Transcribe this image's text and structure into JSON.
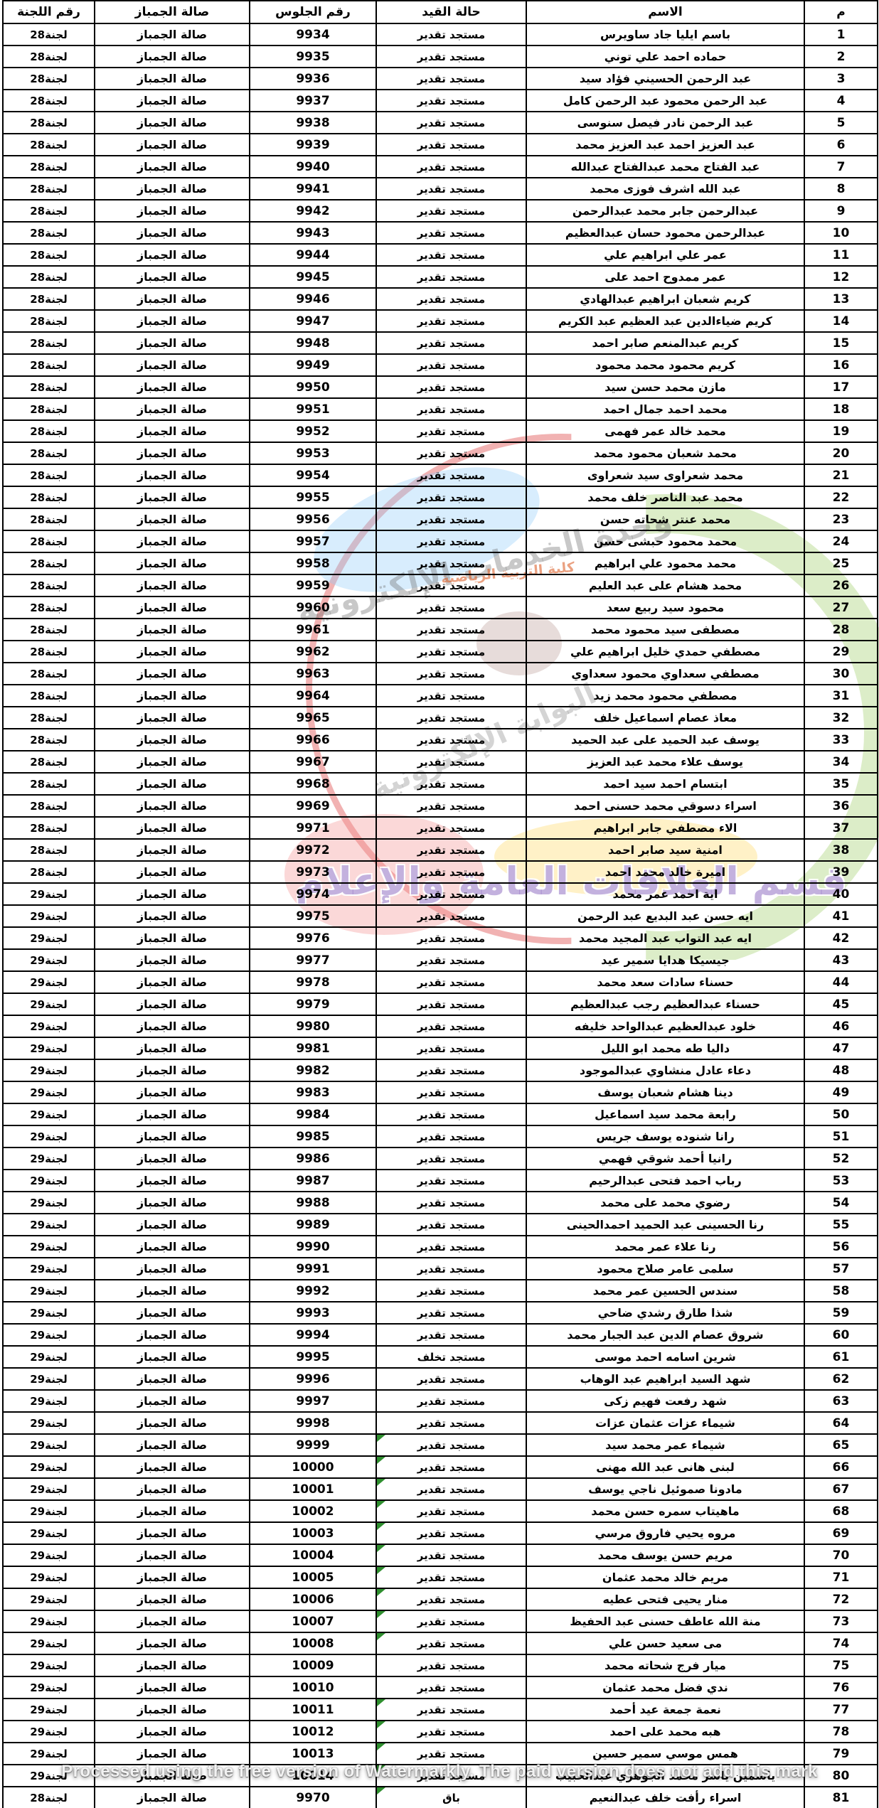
{
  "table": {
    "headers": [
      "م",
      "الاسم",
      "حالة القيد",
      "رقم الجلوس",
      "صالة الجمباز",
      "رقم اللجنة"
    ],
    "rows": [
      {
        "n": "1",
        "name": "باسم ايليا جاد ساويرس",
        "status": "مستجد تقدير",
        "seat": "9934",
        "hall": "صالة الجمباز",
        "committee": "لجنة28",
        "flag": false
      },
      {
        "n": "2",
        "name": "حماده احمد علي توني",
        "status": "مستجد تقدير",
        "seat": "9935",
        "hall": "صالة الجمباز",
        "committee": "لجنة28",
        "flag": false
      },
      {
        "n": "3",
        "name": "عبد الرحمن الحسيني فؤاد سيد",
        "status": "مستجد تقدير",
        "seat": "9936",
        "hall": "صالة الجمباز",
        "committee": "لجنة28",
        "flag": false
      },
      {
        "n": "4",
        "name": "عبد الرحمن محمود عبد الرحمن كامل",
        "status": "مستجد تقدير",
        "seat": "9937",
        "hall": "صالة الجمباز",
        "committee": "لجنة28",
        "flag": false
      },
      {
        "n": "5",
        "name": "عبد الرحمن نادر فيصل سنوسى",
        "status": "مستجد تقدير",
        "seat": "9938",
        "hall": "صالة الجمباز",
        "committee": "لجنة28",
        "flag": false
      },
      {
        "n": "6",
        "name": "عبد العزيز احمد عبد العزيز محمد",
        "status": "مستجد تقدير",
        "seat": "9939",
        "hall": "صالة الجمباز",
        "committee": "لجنة28",
        "flag": false
      },
      {
        "n": "7",
        "name": "عبد الفتاح محمد عبدالفتاح عبدالله",
        "status": "مستجد تقدير",
        "seat": "9940",
        "hall": "صالة الجمباز",
        "committee": "لجنة28",
        "flag": false
      },
      {
        "n": "8",
        "name": "عبد الله اشرف فوزى محمد",
        "status": "مستجد تقدير",
        "seat": "9941",
        "hall": "صالة الجمباز",
        "committee": "لجنة28",
        "flag": false
      },
      {
        "n": "9",
        "name": "عبدالرحمن جابر محمد عبدالرحمن",
        "status": "مستجد تقدير",
        "seat": "9942",
        "hall": "صالة الجمباز",
        "committee": "لجنة28",
        "flag": false
      },
      {
        "n": "10",
        "name": "عبدالرحمن محمود حسان عبدالعظيم",
        "status": "مستجد تقدير",
        "seat": "9943",
        "hall": "صالة الجمباز",
        "committee": "لجنة28",
        "flag": false
      },
      {
        "n": "11",
        "name": "عمر علي ابراهيم علي",
        "status": "مستجد تقدير",
        "seat": "9944",
        "hall": "صالة الجمباز",
        "committee": "لجنة28",
        "flag": false
      },
      {
        "n": "12",
        "name": "عمر ممدوح احمد على",
        "status": "مستجد تقدير",
        "seat": "9945",
        "hall": "صالة الجمباز",
        "committee": "لجنة28",
        "flag": false
      },
      {
        "n": "13",
        "name": "كريم شعبان ابراهيم عبدالهادي",
        "status": "مستجد تقدير",
        "seat": "9946",
        "hall": "صالة الجمباز",
        "committee": "لجنة28",
        "flag": false
      },
      {
        "n": "14",
        "name": "كريم ضياءالدين عبد العظيم عبد الكريم",
        "status": "مستجد تقدير",
        "seat": "9947",
        "hall": "صالة الجمباز",
        "committee": "لجنة28",
        "flag": false
      },
      {
        "n": "15",
        "name": "كريم عبدالمنعم صابر احمد",
        "status": "مستجد تقدير",
        "seat": "9948",
        "hall": "صالة الجمباز",
        "committee": "لجنة28",
        "flag": false
      },
      {
        "n": "16",
        "name": "كريم محمود محمد محمود",
        "status": "مستجد تقدير",
        "seat": "9949",
        "hall": "صالة الجمباز",
        "committee": "لجنة28",
        "flag": false
      },
      {
        "n": "17",
        "name": "مازن محمد حسن سيد",
        "status": "مستجد تقدير",
        "seat": "9950",
        "hall": "صالة الجمباز",
        "committee": "لجنة28",
        "flag": false
      },
      {
        "n": "18",
        "name": "محمد احمد جمال احمد",
        "status": "مستجد تقدير",
        "seat": "9951",
        "hall": "صالة الجمباز",
        "committee": "لجنة28",
        "flag": false
      },
      {
        "n": "19",
        "name": "محمد خالد عمر فهمى",
        "status": "مستجد تقدير",
        "seat": "9952",
        "hall": "صالة الجمباز",
        "committee": "لجنة28",
        "flag": false
      },
      {
        "n": "20",
        "name": "محمد شعبان محمود محمد",
        "status": "مستجد تقدير",
        "seat": "9953",
        "hall": "صالة الجمباز",
        "committee": "لجنة28",
        "flag": false
      },
      {
        "n": "21",
        "name": "محمد شعراوى سيد شعراوى",
        "status": "مستجد تقدير",
        "seat": "9954",
        "hall": "صالة الجمباز",
        "committee": "لجنة28",
        "flag": false
      },
      {
        "n": "22",
        "name": "محمد عبد الناصر خلف محمد",
        "status": "مستجد تقدير",
        "seat": "9955",
        "hall": "صالة الجمباز",
        "committee": "لجنة28",
        "flag": false
      },
      {
        "n": "23",
        "name": "محمد عنتر شحاته حسن",
        "status": "مستجد تقدير",
        "seat": "9956",
        "hall": "صالة الجمباز",
        "committee": "لجنة28",
        "flag": false
      },
      {
        "n": "24",
        "name": "محمد محمود حبشى حسن",
        "status": "مستجد تقدير",
        "seat": "9957",
        "hall": "صالة الجمباز",
        "committee": "لجنة28",
        "flag": false
      },
      {
        "n": "25",
        "name": "محمد محمود علي ابراهيم",
        "status": "مستجد تقدير",
        "seat": "9958",
        "hall": "صالة الجمباز",
        "committee": "لجنة28",
        "flag": false
      },
      {
        "n": "26",
        "name": "محمد هشام على عبد العليم",
        "status": "مستجد تقدير",
        "seat": "9959",
        "hall": "صالة الجمباز",
        "committee": "لجنة28",
        "flag": false
      },
      {
        "n": "27",
        "name": "محمود سيد ربيع سعد",
        "status": "مستجد تقدير",
        "seat": "9960",
        "hall": "صالة الجمباز",
        "committee": "لجنة28",
        "flag": false
      },
      {
        "n": "28",
        "name": "مصطفى سيد محمود محمد",
        "status": "مستجد تقدير",
        "seat": "9961",
        "hall": "صالة الجمباز",
        "committee": "لجنة28",
        "flag": false
      },
      {
        "n": "29",
        "name": "مصطفي حمدي خليل ابراهيم علي",
        "status": "مستجد تقدير",
        "seat": "9962",
        "hall": "صالة الجمباز",
        "committee": "لجنة28",
        "flag": false
      },
      {
        "n": "30",
        "name": "مصطفي سعداوي محمود سعداوي",
        "status": "مستجد تقدير",
        "seat": "9963",
        "hall": "صالة الجمباز",
        "committee": "لجنة28",
        "flag": false
      },
      {
        "n": "31",
        "name": "مصطفي محمود محمد زيد",
        "status": "مستجد تقدير",
        "seat": "9964",
        "hall": "صالة الجمباز",
        "committee": "لجنة28",
        "flag": false
      },
      {
        "n": "32",
        "name": "معاذ عصام اسماعيل خلف",
        "status": "مستجد تقدير",
        "seat": "9965",
        "hall": "صالة الجمباز",
        "committee": "لجنة28",
        "flag": false
      },
      {
        "n": "33",
        "name": "يوسف عبد الحميد على عبد الحميد",
        "status": "مستجد تقدير",
        "seat": "9966",
        "hall": "صالة الجمباز",
        "committee": "لجنة28",
        "flag": false
      },
      {
        "n": "34",
        "name": "يوسف علاء محمد عبد العزيز",
        "status": "مستجد تقدير",
        "seat": "9967",
        "hall": "صالة الجمباز",
        "committee": "لجنة28",
        "flag": false
      },
      {
        "n": "35",
        "name": "ابتسام احمد سيد احمد",
        "status": "مستجد تقدير",
        "seat": "9968",
        "hall": "صالة الجمباز",
        "committee": "لجنة28",
        "flag": false
      },
      {
        "n": "36",
        "name": "اسراء دسوقي محمد حسنى احمد",
        "status": "مستجد تقدير",
        "seat": "9969",
        "hall": "صالة الجمباز",
        "committee": "لجنة28",
        "flag": false
      },
      {
        "n": "37",
        "name": "الاء مصطفي جابر ابراهيم",
        "status": "مستجد تقدير",
        "seat": "9971",
        "hall": "صالة الجمباز",
        "committee": "لجنة28",
        "flag": false
      },
      {
        "n": "38",
        "name": "امنية سيد صابر احمد",
        "status": "مستجد تقدير",
        "seat": "9972",
        "hall": "صالة الجمباز",
        "committee": "لجنة28",
        "flag": false
      },
      {
        "n": "39",
        "name": "اميرة خالد محمد احمد",
        "status": "مستجد تقدير",
        "seat": "9973",
        "hall": "صالة الجمباز",
        "committee": "لجنة28",
        "flag": false
      },
      {
        "n": "40",
        "name": "اية احمد عمر محمد",
        "status": "مستجد تقدير",
        "seat": "9974",
        "hall": "صالة الجمباز",
        "committee": "لجنة29",
        "flag": false
      },
      {
        "n": "41",
        "name": "ايه حسن عبد البديع عبد الرحمن",
        "status": "مستجد تقدير",
        "seat": "9975",
        "hall": "صالة الجمباز",
        "committee": "لجنة29",
        "flag": false
      },
      {
        "n": "42",
        "name": "ايه عبد التواب عبد المجيد محمد",
        "status": "مستجد تقدير",
        "seat": "9976",
        "hall": "صالة الجمباز",
        "committee": "لجنة29",
        "flag": false
      },
      {
        "n": "43",
        "name": "جيسيكا هدايا سمير عيد",
        "status": "مستجد تقدير",
        "seat": "9977",
        "hall": "صالة الجمباز",
        "committee": "لجنة29",
        "flag": false
      },
      {
        "n": "44",
        "name": "حسناء سادات سعد محمد",
        "status": "مستجد تقدير",
        "seat": "9978",
        "hall": "صالة الجمباز",
        "committee": "لجنة29",
        "flag": false
      },
      {
        "n": "45",
        "name": "حسناء عبدالعظيم رجب عبدالعظيم",
        "status": "مستجد تقدير",
        "seat": "9979",
        "hall": "صالة الجمباز",
        "committee": "لجنة29",
        "flag": false
      },
      {
        "n": "46",
        "name": "خلود عبدالعظيم عبدالواحد خليفه",
        "status": "مستجد تقدير",
        "seat": "9980",
        "hall": "صالة الجمباز",
        "committee": "لجنة29",
        "flag": false
      },
      {
        "n": "47",
        "name": "داليا طه محمد ابو الليل",
        "status": "مستجد تقدير",
        "seat": "9981",
        "hall": "صالة الجمباز",
        "committee": "لجنة29",
        "flag": false
      },
      {
        "n": "48",
        "name": "دعاء عادل منشاوي عبدالموجود",
        "status": "مستجد تقدير",
        "seat": "9982",
        "hall": "صالة الجمباز",
        "committee": "لجنة29",
        "flag": false
      },
      {
        "n": "49",
        "name": "دينا هشام شعبان يوسف",
        "status": "مستجد تقدير",
        "seat": "9983",
        "hall": "صالة الجمباز",
        "committee": "لجنة29",
        "flag": false
      },
      {
        "n": "50",
        "name": "رابعة محمد سيد اسماعيل",
        "status": "مستجد تقدير",
        "seat": "9984",
        "hall": "صالة الجمباز",
        "committee": "لجنة29",
        "flag": false
      },
      {
        "n": "51",
        "name": "رانا شنوده يوسف جريس",
        "status": "مستجد تقدير",
        "seat": "9985",
        "hall": "صالة الجمباز",
        "committee": "لجنة29",
        "flag": false
      },
      {
        "n": "52",
        "name": "رانيا أحمد شوقي فهمي",
        "status": "مستجد تقدير",
        "seat": "9986",
        "hall": "صالة الجمباز",
        "committee": "لجنة29",
        "flag": false
      },
      {
        "n": "53",
        "name": "رباب احمد فتحى عبدالرحيم",
        "status": "مستجد تقدير",
        "seat": "9987",
        "hall": "صالة الجمباز",
        "committee": "لجنة29",
        "flag": false
      },
      {
        "n": "54",
        "name": "رضوي محمد على محمد",
        "status": "مستجد تقدير",
        "seat": "9988",
        "hall": "صالة الجمباز",
        "committee": "لجنة29",
        "flag": false
      },
      {
        "n": "55",
        "name": "رنا الحسينى عبد الحميد احمدالحينى",
        "status": "مستجد تقدير",
        "seat": "9989",
        "hall": "صالة الجمباز",
        "committee": "لجنة29",
        "flag": false
      },
      {
        "n": "56",
        "name": "رنا علاء عمر محمد",
        "status": "مستجد تقدير",
        "seat": "9990",
        "hall": "صالة الجمباز",
        "committee": "لجنة29",
        "flag": false
      },
      {
        "n": "57",
        "name": "سلمى عامر صلاح محمود",
        "status": "مستجد تقدير",
        "seat": "9991",
        "hall": "صالة الجمباز",
        "committee": "لجنة29",
        "flag": false
      },
      {
        "n": "58",
        "name": "سندس الحسين عمر محمد",
        "status": "مستجد تقدير",
        "seat": "9992",
        "hall": "صالة الجمباز",
        "committee": "لجنة29",
        "flag": false
      },
      {
        "n": "59",
        "name": "شذا طارق رشدي ضاحي",
        "status": "مستجد تقدير",
        "seat": "9993",
        "hall": "صالة الجمباز",
        "committee": "لجنة29",
        "flag": false
      },
      {
        "n": "60",
        "name": "شروق عصام الدين عبد الجبار محمد",
        "status": "مستجد تقدير",
        "seat": "9994",
        "hall": "صالة الجمباز",
        "committee": "لجنة29",
        "flag": false
      },
      {
        "n": "61",
        "name": "شرين اسامه احمد موسى",
        "status": "مستجد تخلف",
        "seat": "9995",
        "hall": "صالة الجمباز",
        "committee": "لجنة29",
        "flag": false
      },
      {
        "n": "62",
        "name": "شهد السيد ابراهيم عبد الوهاب",
        "status": "مستجد تقدير",
        "seat": "9996",
        "hall": "صالة الجمباز",
        "committee": "لجنة29",
        "flag": false
      },
      {
        "n": "63",
        "name": "شهد رفعت فهيم زكى",
        "status": "مستجد تقدير",
        "seat": "9997",
        "hall": "صالة الجمباز",
        "committee": "لجنة29",
        "flag": false
      },
      {
        "n": "64",
        "name": "شيماء عزات عثمان عزات",
        "status": "مستجد تقدير",
        "seat": "9998",
        "hall": "صالة الجمباز",
        "committee": "لجنة29",
        "flag": false
      },
      {
        "n": "65",
        "name": "شيماء عمر محمد سيد",
        "status": "مستجد تقدير",
        "seat": "9999",
        "hall": "صالة الجمباز",
        "committee": "لجنة29",
        "flag": true
      },
      {
        "n": "66",
        "name": "لبنى هانى عبد الله مهنى",
        "status": "مستجد تقدير",
        "seat": "10000",
        "hall": "صالة الجمباز",
        "committee": "لجنة29",
        "flag": true
      },
      {
        "n": "67",
        "name": "مادونا صموئيل ناجي يوسف",
        "status": "مستجد تقدير",
        "seat": "10001",
        "hall": "صالة الجمباز",
        "committee": "لجنة29",
        "flag": true
      },
      {
        "n": "68",
        "name": "ماهيتاب سمره حسن محمد",
        "status": "مستجد تقدير",
        "seat": "10002",
        "hall": "صالة الجمباز",
        "committee": "لجنة29",
        "flag": true
      },
      {
        "n": "69",
        "name": "مروه يحيي فاروق مرسي",
        "status": "مستجد تقدير",
        "seat": "10003",
        "hall": "صالة الجمباز",
        "committee": "لجنة29",
        "flag": true
      },
      {
        "n": "70",
        "name": "مريم حسن يوسف محمد",
        "status": "مستجد تقدير",
        "seat": "10004",
        "hall": "صالة الجمباز",
        "committee": "لجنة29",
        "flag": true
      },
      {
        "n": "71",
        "name": "مريم خالد محمد عثمان",
        "status": "مستجد تقدير",
        "seat": "10005",
        "hall": "صالة الجمباز",
        "committee": "لجنة29",
        "flag": true
      },
      {
        "n": "72",
        "name": "منار يحيى فتحى عطيه",
        "status": "مستجد تقدير",
        "seat": "10006",
        "hall": "صالة الجمباز",
        "committee": "لجنة29",
        "flag": true
      },
      {
        "n": "73",
        "name": "منة الله عاطف حسنى عبد الحفيظ",
        "status": "مستجد تقدير",
        "seat": "10007",
        "hall": "صالة الجمباز",
        "committee": "لجنة29",
        "flag": true
      },
      {
        "n": "74",
        "name": "مى سعيد حسن علي",
        "status": "مستجد تقدير",
        "seat": "10008",
        "hall": "صالة الجمباز",
        "committee": "لجنة29",
        "flag": true
      },
      {
        "n": "75",
        "name": "ميار فرج شحاته محمد",
        "status": "مستجد تقدير",
        "seat": "10009",
        "hall": "صالة الجمباز",
        "committee": "لجنة29",
        "flag": false
      },
      {
        "n": "76",
        "name": "ندي فضل محمد عثمان",
        "status": "مستجد تقدير",
        "seat": "10010",
        "hall": "صالة الجمباز",
        "committee": "لجنة29",
        "flag": false
      },
      {
        "n": "77",
        "name": "نعمة جمعة عيد أحمد",
        "status": "مستجد تقدير",
        "seat": "10011",
        "hall": "صالة الجمباز",
        "committee": "لجنة29",
        "flag": true
      },
      {
        "n": "78",
        "name": "هبه محمد على احمد",
        "status": "مستجد تقدير",
        "seat": "10012",
        "hall": "صالة الجمباز",
        "committee": "لجنة29",
        "flag": true
      },
      {
        "n": "79",
        "name": "همس موسي سمير حسين",
        "status": "مستجد تقدير",
        "seat": "10013",
        "hall": "صالة الجمباز",
        "committee": "لجنة29",
        "flag": true
      },
      {
        "n": "80",
        "name": "ياسمين ياسر محمد الجوهري عبدالحبيب",
        "status": "مستجد تقدير",
        "seat": "10014",
        "hall": "صالة الجمباز",
        "committee": "لجنة29",
        "flag": true
      },
      {
        "n": "81",
        "name": "اسراء رأفت خلف عبدالنعيم",
        "status": "باق",
        "seat": "9970",
        "hall": "صالة الجمباز",
        "committee": "لجنة28",
        "flag": true
      }
    ]
  },
  "logo": {
    "line1": "وحدة الخدمات الإلكترونية",
    "line2": "البوابة الإلكترونية",
    "line3": "كلية التربية الرياضية",
    "line4": "قسم العلاقات العامة والإعلام"
  },
  "watermark": {
    "text": "Processed using the free version of Watermarkly. The paid version does not add this mark"
  },
  "colors": {
    "grid": "#000000",
    "flag_green": "#2f8f2f",
    "logo_green": "#8bc34a",
    "logo_blue": "#90caf9",
    "logo_red": "#e57373",
    "logo_yellow": "#ffe082",
    "logo_purple": "#9b7dc8"
  }
}
